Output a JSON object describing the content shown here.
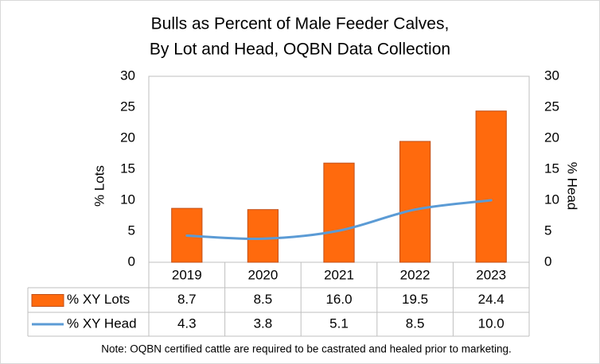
{
  "chart_data": {
    "type": "bar",
    "title": [
      "Bulls as Percent of Male Feeder Calves,",
      "By Lot and  Head,  OQBN Data Collection"
    ],
    "y_label": "% Lots",
    "y2_label": "% Head",
    "categories": [
      "2019",
      "2020",
      "2021",
      "2022",
      "2023"
    ],
    "series": [
      {
        "name": "% XY Lots",
        "type": "bar",
        "color": "#ff6a0d",
        "edge": "#c0501a",
        "values": [
          8.7,
          8.5,
          16.0,
          19.5,
          24.4
        ],
        "value_labels": [
          "8.7",
          "8.5",
          "16.0",
          "19.5",
          "24.4"
        ]
      },
      {
        "name": "% XY Head",
        "type": "line",
        "axis": "y2",
        "color": "#5b9bd5",
        "values": [
          4.3,
          3.8,
          5.1,
          8.5,
          10.0
        ],
        "value_labels": [
          "4.3",
          "3.8",
          "5.1",
          "8.5",
          "10.0"
        ]
      }
    ],
    "ylim": [
      0,
      30
    ],
    "yticks": [
      0,
      5,
      10,
      15,
      20,
      25,
      30
    ],
    "y2lim": [
      0,
      30
    ],
    "y2ticks": [
      0,
      5,
      10,
      15,
      20,
      25,
      30
    ],
    "grid": false,
    "note": "Note: OQBN certified cattle are required to be castrated and healed prior to  marketing."
  }
}
